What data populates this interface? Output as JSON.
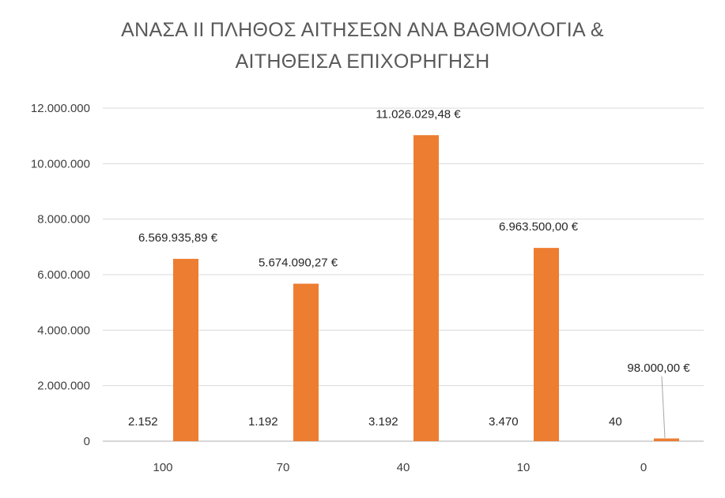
{
  "chart_data": {
    "type": "bar",
    "title_lines": [
      "ΑΝΑΣΑ ΙΙ ΠΛΗΘΟΣ ΑΙΤΗΣΕΩΝ ΑΝΑ ΒΑΘΜΟΛΟΓΙΑ &",
      "ΑΙΤΗΘΕΙΣΑ ΕΠΙΧΟΡΗΓΗΣΗ"
    ],
    "categories": [
      "100",
      "70",
      "40",
      "10",
      "0"
    ],
    "series": [
      {
        "values": [
          6569935.89,
          5674090.27,
          11026029.48,
          6963500.0,
          98000.0
        ],
        "value_labels": [
          "6.569.935,89 €",
          "5.674.090,27 €",
          "11.026.029,48 €",
          "6.963.500,00 €",
          "98.000,00 €"
        ],
        "color": "#ED7D31"
      }
    ],
    "count_labels": [
      "2.152",
      "1.192",
      "3.192",
      "3.470",
      "40"
    ],
    "yticks": [
      "0",
      "2.000.000",
      "4.000.000",
      "6.000.000",
      "8.000.000",
      "10.000.000",
      "12.000.000"
    ],
    "ylim": [
      0,
      12000000
    ],
    "grid": true,
    "legend": "none",
    "grid_color": "#D9D9D9",
    "axis_color": "#BFBFBF"
  }
}
